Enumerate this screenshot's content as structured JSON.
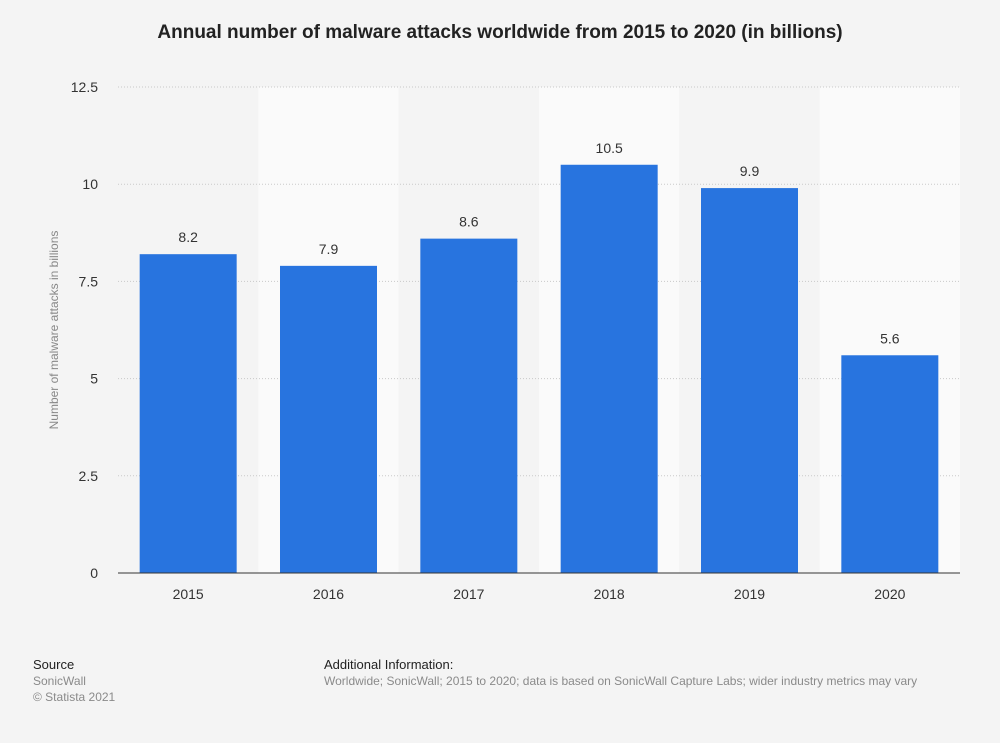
{
  "chart_data": {
    "type": "bar",
    "title": "Annual number of malware attacks worldwide from 2015 to 2020 (in billions)",
    "xlabel": "",
    "ylabel": "Number of malware attacks in billions",
    "categories": [
      "2015",
      "2016",
      "2017",
      "2018",
      "2019",
      "2020"
    ],
    "values": [
      8.2,
      7.9,
      8.6,
      10.5,
      9.9,
      5.6
    ],
    "value_labels": [
      "8.2",
      "7.9",
      "8.6",
      "10.5",
      "9.9",
      "5.6"
    ],
    "ylim": [
      0,
      12.5
    ],
    "yticks": [
      0,
      2.5,
      5,
      7.5,
      10,
      12.5
    ],
    "ytick_labels": [
      "0",
      "2.5",
      "5",
      "7.5",
      "10",
      "12.5"
    ],
    "grid": true,
    "legend": "none",
    "bar_color": "#2874df"
  },
  "footer": {
    "source_heading": "Source",
    "source_name": "SonicWall",
    "copyright": "© Statista 2021",
    "additional_heading": "Additional Information:",
    "additional_text": "Worldwide; SonicWall; 2015 to 2020; data is based on SonicWall Capture Labs; wider industry metrics may vary"
  }
}
